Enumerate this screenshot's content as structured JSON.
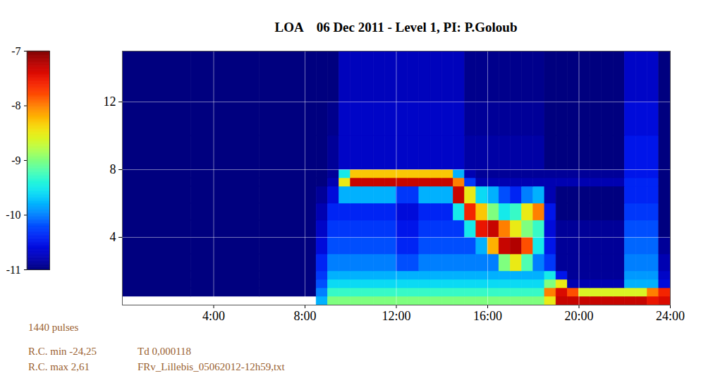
{
  "chart_data": {
    "type": "heatmap",
    "title": "LOA    06 Dec 2011 - Level 1, PI: P.Goloub",
    "x_edges": [
      0,
      3,
      6,
      8.5,
      9,
      9.5,
      10,
      10.5,
      11,
      11.5,
      12,
      12.5,
      13,
      13.5,
      14,
      14.5,
      15,
      15.5,
      16,
      16.5,
      17,
      17.5,
      18,
      18.5,
      19,
      19.5,
      20,
      20.5,
      21,
      21.5,
      22,
      22.5,
      23,
      23.5,
      24
    ],
    "y_edges": [
      0,
      0.5,
      1,
      1.5,
      2,
      3,
      4,
      5,
      6,
      7,
      7.5,
      8,
      10,
      12,
      15
    ],
    "values": [
      [
        null,
        null,
        null,
        -9.8,
        -9.0,
        -9.0,
        -9.0,
        -9.0,
        -9.0,
        -9.0,
        -9.0,
        -9.0,
        -9.0,
        -9.0,
        -9.0,
        -9.0,
        -9.0,
        -9.0,
        -9.0,
        -9.0,
        -9.0,
        -9.0,
        -9.0,
        -8.5,
        -7.3,
        -7.3,
        -7.3,
        -7.3,
        -7.3,
        -7.3,
        -7.3,
        -7.3,
        -7.5,
        -7.4
      ],
      [
        -11,
        -11,
        -11,
        -10.0,
        -9.3,
        -9.3,
        -9.3,
        -9.3,
        -9.3,
        -9.3,
        -9.3,
        -9.3,
        -9.3,
        -9.3,
        -9.3,
        -9.3,
        -9.3,
        -9.3,
        -9.3,
        -9.3,
        -9.3,
        -9.3,
        -9.3,
        -8.0,
        -7.4,
        -7.8,
        -8.6,
        -8.6,
        -8.6,
        -8.6,
        -8.6,
        -8.6,
        -8.0,
        -7.6
      ],
      [
        -11,
        -11,
        -11,
        -10.2,
        -9.6,
        -9.6,
        -9.6,
        -9.6,
        -9.6,
        -9.6,
        -9.6,
        -9.6,
        -9.6,
        -9.6,
        -9.6,
        -9.6,
        -9.6,
        -9.6,
        -9.6,
        -9.6,
        -9.6,
        -9.6,
        -9.6,
        -9.0,
        -8.5,
        -10.8,
        -10.8,
        -10.8,
        -10.8,
        -10.8,
        -9.8,
        -9.8,
        -9.8,
        -10.6
      ],
      [
        -11,
        -11,
        -11,
        -10.3,
        -9.8,
        -9.8,
        -9.8,
        -9.8,
        -9.8,
        -9.8,
        -9.8,
        -9.8,
        -9.8,
        -9.8,
        -9.8,
        -9.8,
        -9.8,
        -9.8,
        -9.8,
        -9.8,
        -9.8,
        -9.8,
        -9.8,
        -9.5,
        -10.5,
        -10.9,
        -10.9,
        -10.9,
        -10.9,
        -10.9,
        -9.9,
        -9.9,
        -9.9,
        -10.7
      ],
      [
        -11,
        -11,
        -11,
        -10.4,
        -10.0,
        -10.0,
        -10.0,
        -10.0,
        -10.0,
        -10.0,
        -10.2,
        -10.2,
        -10.0,
        -10.0,
        -10.0,
        -10.0,
        -10.0,
        -10.0,
        -10.0,
        -9.0,
        -8.5,
        -9.2,
        -10.0,
        -10.3,
        -10.9,
        -10.9,
        -10.9,
        -10.9,
        -10.9,
        -10.9,
        -10.0,
        -10.0,
        -10.0,
        -10.8
      ],
      [
        -11,
        -11,
        -11,
        -10.6,
        -10.2,
        -10.2,
        -10.2,
        -10.2,
        -10.2,
        -10.2,
        -10.4,
        -10.4,
        -10.2,
        -10.2,
        -10.2,
        -10.2,
        -10.2,
        -9.8,
        -8.2,
        -7.3,
        -7.2,
        -7.8,
        -9.5,
        -10.5,
        -10.9,
        -10.9,
        -10.9,
        -10.9,
        -10.9,
        -10.9,
        -10.1,
        -10.1,
        -10.1,
        -10.9
      ],
      [
        -11,
        -11,
        -11,
        -10.7,
        -10.3,
        -10.3,
        -10.3,
        -10.3,
        -10.3,
        -10.3,
        -10.5,
        -10.5,
        -10.3,
        -10.3,
        -10.3,
        -10.3,
        -9.5,
        -7.5,
        -7.3,
        -8.0,
        -8.5,
        -9.0,
        -9.3,
        -10.6,
        -10.9,
        -10.9,
        -10.9,
        -10.9,
        -10.9,
        -10.9,
        -10.2,
        -10.2,
        -10.2,
        -11
      ],
      [
        -11,
        -11,
        -11,
        -10.8,
        -10.4,
        -10.4,
        -10.4,
        -10.4,
        -10.4,
        -10.4,
        -10.6,
        -10.6,
        -10.4,
        -10.4,
        -10.4,
        -9.5,
        -7.6,
        -8.3,
        -9.0,
        -9.5,
        -9.3,
        -8.5,
        -8.0,
        -10.5,
        -11,
        -11,
        -11,
        -11,
        -11,
        -11,
        -10.3,
        -10.3,
        -10.3,
        -11
      ],
      [
        -11,
        -11,
        -11,
        -10.9,
        -10.6,
        -9.8,
        -9.8,
        -9.8,
        -9.8,
        -9.8,
        -10.3,
        -10.3,
        -9.8,
        -9.8,
        -9.8,
        -7.3,
        -8.5,
        -9.6,
        -9.8,
        -10.2,
        -10.4,
        -10.0,
        -9.8,
        -10.8,
        -11,
        -11,
        -11,
        -11,
        -11,
        -11,
        -10.4,
        -10.4,
        -10.4,
        -11
      ],
      [
        -11,
        -11,
        -11,
        -11,
        -10.8,
        -8.5,
        -7.3,
        -7.3,
        -7.3,
        -7.3,
        -7.3,
        -7.3,
        -7.3,
        -7.3,
        -7.3,
        -8.0,
        -10.3,
        -10.8,
        -10.8,
        -10.8,
        -10.8,
        -10.8,
        -10.8,
        -10.8,
        -10.8,
        -10.8,
        -10.8,
        -10.8,
        -10.8,
        -10.8,
        -10.4,
        -10.4,
        -10.4,
        -11
      ],
      [
        -11,
        -11,
        -11,
        -11,
        -10.9,
        -9.5,
        -8.3,
        -8.3,
        -8.3,
        -8.3,
        -8.3,
        -8.3,
        -8.3,
        -8.3,
        -8.3,
        -9.8,
        -10.8,
        -10.9,
        -10.9,
        -10.9,
        -10.9,
        -10.9,
        -10.9,
        -10.9,
        -10.9,
        -10.9,
        -10.9,
        -10.9,
        -10.9,
        -10.9,
        -10.5,
        -10.5,
        -10.5,
        -11
      ],
      [
        -11,
        -11,
        -11,
        -11,
        -10.9,
        -10.7,
        -10.7,
        -10.7,
        -10.7,
        -10.7,
        -10.7,
        -10.7,
        -10.7,
        -10.7,
        -10.7,
        -10.7,
        -10.85,
        -10.85,
        -10.85,
        -10.85,
        -10.85,
        -10.85,
        -10.85,
        -11,
        -11,
        -11,
        -11,
        -11,
        -11,
        -11,
        -10.5,
        -10.5,
        -10.5,
        -11
      ],
      [
        -11,
        -11,
        -11,
        -11,
        -10.95,
        -10.7,
        -10.7,
        -10.7,
        -10.7,
        -10.7,
        -10.7,
        -10.7,
        -10.7,
        -10.7,
        -10.7,
        -10.7,
        -10.9,
        -10.9,
        -10.9,
        -10.9,
        -10.9,
        -10.9,
        -10.9,
        -11,
        -11,
        -11,
        -11,
        -11,
        -11,
        -11,
        -10.6,
        -10.6,
        -10.6,
        -11
      ],
      [
        -11,
        -11,
        -11,
        -11,
        -11,
        -10.75,
        -10.75,
        -10.75,
        -10.75,
        -10.75,
        -10.75,
        -10.75,
        -10.75,
        -10.75,
        -10.75,
        -10.75,
        -10.95,
        -10.95,
        -10.95,
        -10.95,
        -10.95,
        -10.95,
        -10.95,
        -11,
        -11,
        -11,
        -11,
        -11,
        -11,
        -11,
        -10.7,
        -10.7,
        -10.7,
        -11
      ]
    ],
    "xlim": [
      0,
      24
    ],
    "xticks": [
      {
        "value": 4,
        "label": "4:00"
      },
      {
        "value": 8,
        "label": "8:00"
      },
      {
        "value": 12,
        "label": "12:00"
      },
      {
        "value": 16,
        "label": "16:00"
      },
      {
        "value": 20,
        "label": "20:00"
      },
      {
        "value": 24,
        "label": "24:00"
      }
    ],
    "ylim": [
      0,
      15
    ],
    "yticks": [
      4,
      8,
      12
    ],
    "grid": true,
    "colorbar": {
      "range": [
        -11,
        -7
      ],
      "ticks": [
        -7,
        -8,
        -9,
        -10,
        -11
      ]
    },
    "annotations": [
      "1440 pulses",
      "R.C. min -24,25",
      "R.C. max 2,61",
      "Td 0,000118",
      "FRv_Lillebis_05062012-12h59,txt"
    ]
  }
}
